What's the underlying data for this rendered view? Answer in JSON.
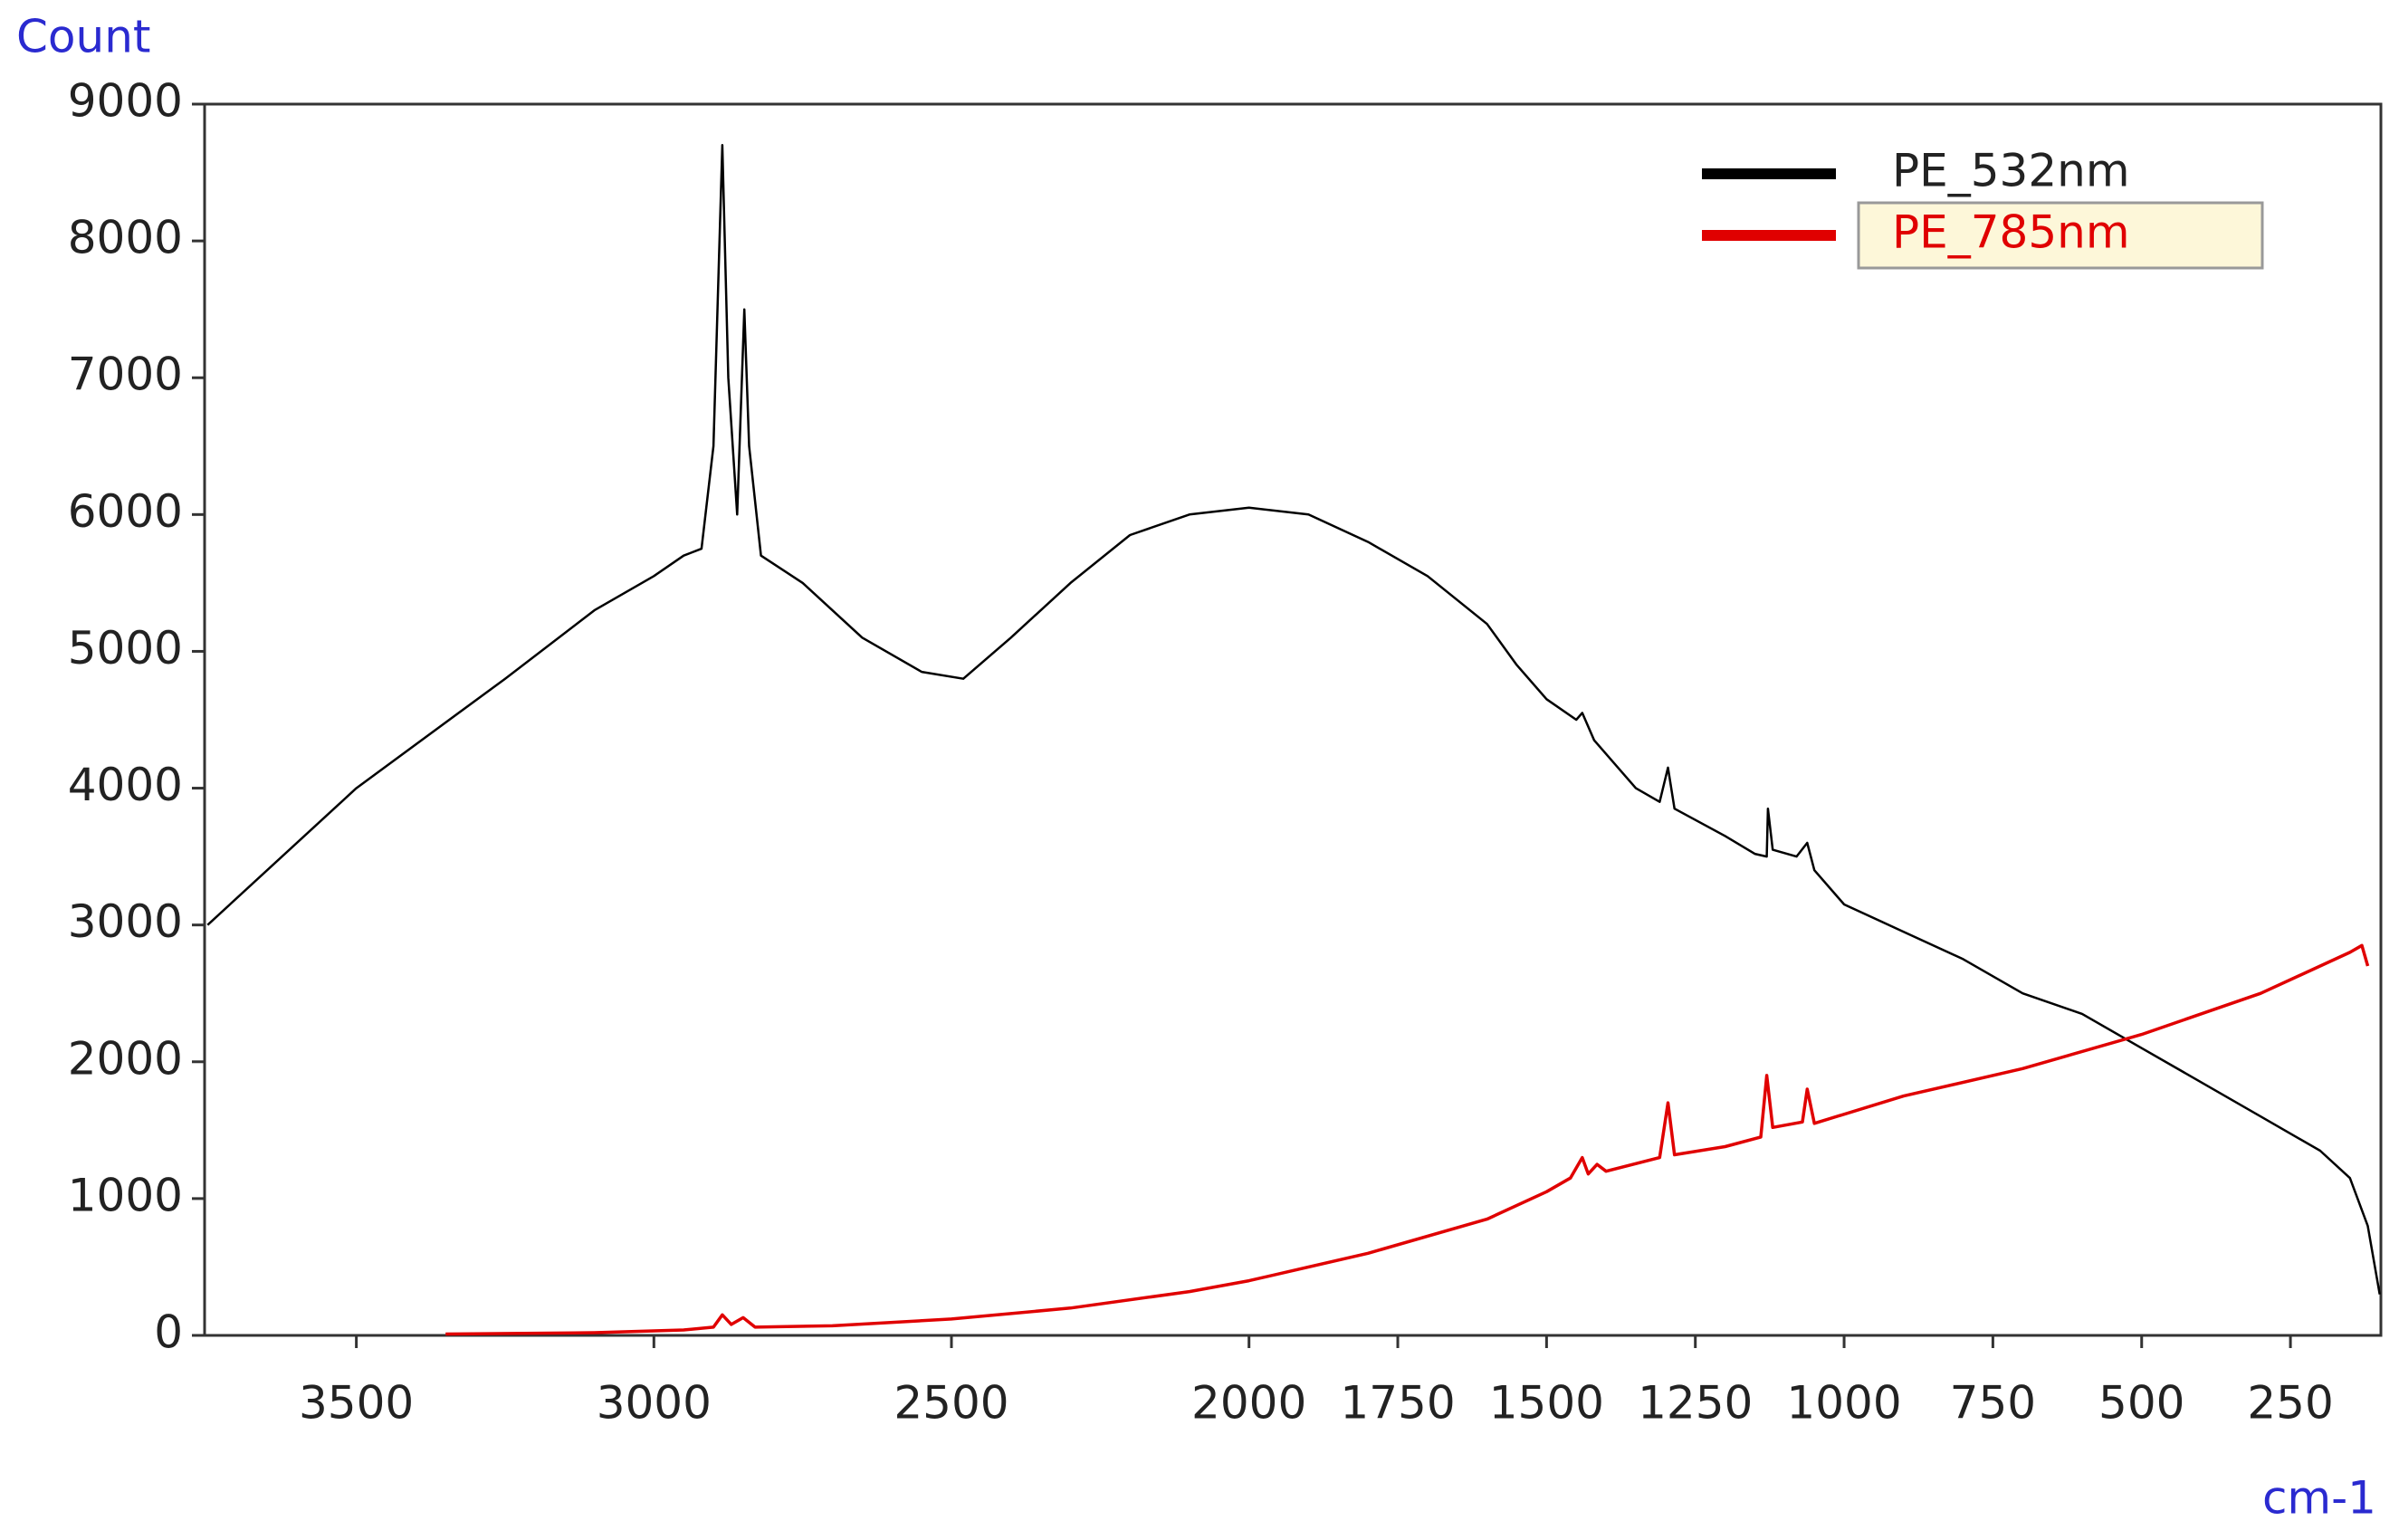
{
  "chart_data": {
    "type": "line",
    "y_label": "Count",
    "x_label": "cm-1",
    "xlim": [
      3755,
      98
    ],
    "ylim": [
      0,
      9000
    ],
    "xticks": [
      3500,
      3000,
      2500,
      2000,
      1750,
      1500,
      1250,
      1000,
      750,
      500,
      250
    ],
    "yticks": [
      0,
      1000,
      2000,
      3000,
      4000,
      5000,
      6000,
      7000,
      8000,
      9000
    ],
    "legend": "top-right",
    "series": [
      {
        "name": "PE_532nm",
        "color": "#000000",
        "x": [
          3750,
          3500,
          3250,
          3100,
          3000,
          2950,
          2920,
          2900,
          2885,
          2875,
          2860,
          2848,
          2840,
          2820,
          2750,
          2650,
          2550,
          2480,
          2400,
          2300,
          2200,
          2100,
          2000,
          1900,
          1800,
          1700,
          1600,
          1550,
          1500,
          1450,
          1440,
          1420,
          1350,
          1310,
          1296,
          1285,
          1200,
          1150,
          1130,
          1128,
          1120,
          1080,
          1062,
          1050,
          1000,
          900,
          800,
          700,
          600,
          500,
          400,
          300,
          200,
          150,
          120,
          100
        ],
        "values": [
          3000,
          4000,
          4800,
          5300,
          5550,
          5700,
          5750,
          6500,
          8700,
          7000,
          6000,
          7500,
          6500,
          5700,
          5500,
          5100,
          4850,
          4800,
          5100,
          5500,
          5850,
          6000,
          6050,
          6000,
          5800,
          5550,
          5200,
          4900,
          4650,
          4500,
          4550,
          4350,
          4000,
          3900,
          4150,
          3850,
          3650,
          3520,
          3500,
          3850,
          3550,
          3500,
          3600,
          3400,
          3150,
          2950,
          2750,
          2500,
          2350,
          2100,
          1850,
          1600,
          1350,
          1150,
          800,
          300
        ]
      },
      {
        "name": "PE_785nm",
        "color": "#e00000",
        "x": [
          3350,
          3100,
          2950,
          2900,
          2885,
          2870,
          2850,
          2830,
          2700,
          2500,
          2300,
          2100,
          2000,
          1800,
          1600,
          1500,
          1460,
          1440,
          1430,
          1415,
          1400,
          1310,
          1296,
          1285,
          1200,
          1140,
          1130,
          1120,
          1070,
          1062,
          1050,
          900,
          700,
          500,
          300,
          150,
          130,
          120
        ],
        "values": [
          10,
          20,
          40,
          60,
          150,
          80,
          130,
          60,
          70,
          120,
          200,
          320,
          400,
          600,
          850,
          1050,
          1150,
          1300,
          1180,
          1250,
          1200,
          1300,
          1700,
          1320,
          1380,
          1450,
          1900,
          1520,
          1560,
          1800,
          1550,
          1750,
          1950,
          2200,
          2500,
          2800,
          2850,
          2700
        ]
      }
    ]
  }
}
